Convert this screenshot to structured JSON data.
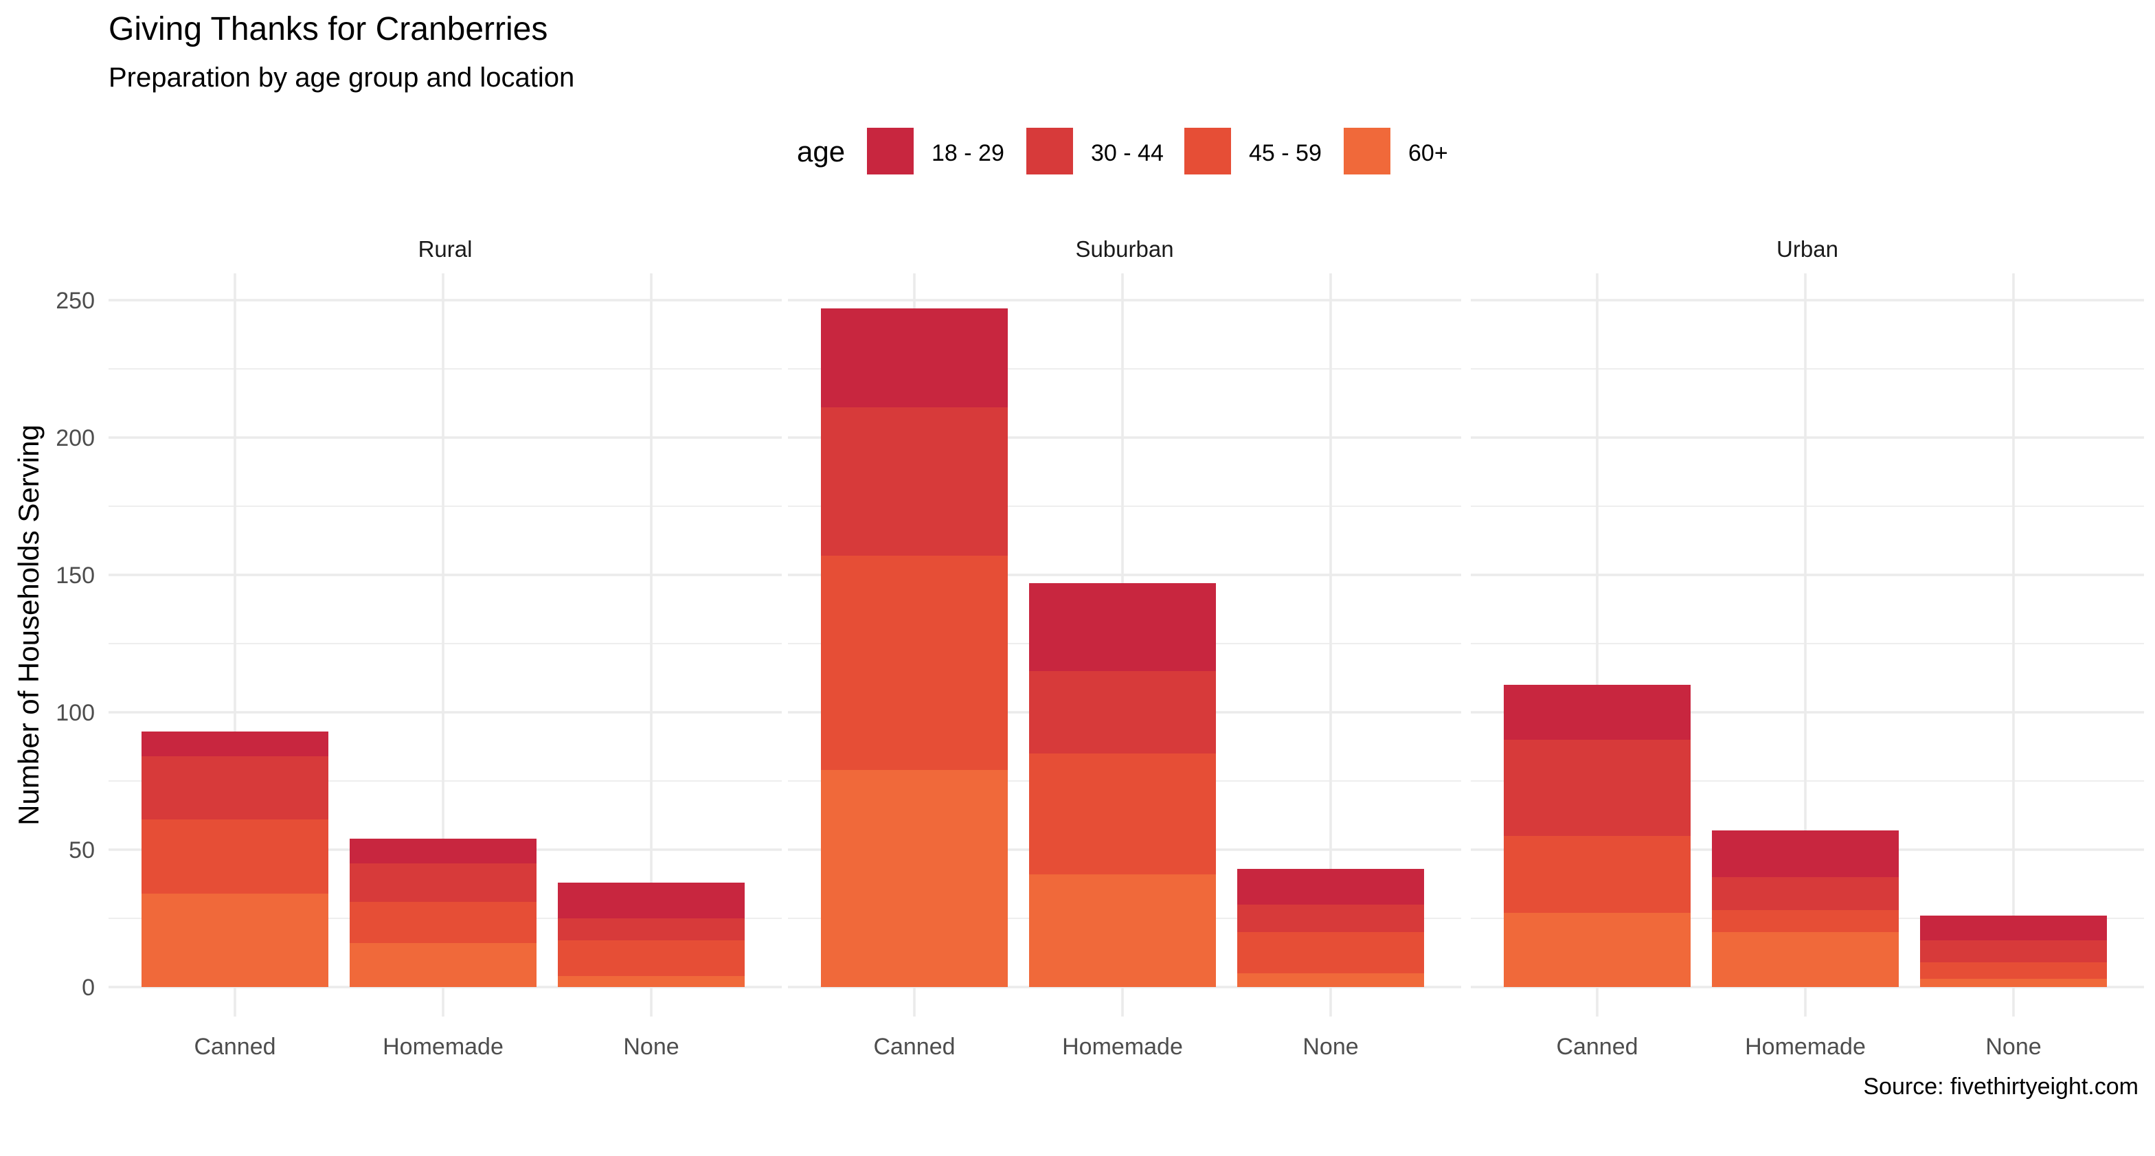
{
  "chart_data": {
    "type": "bar",
    "stacked": true,
    "faceted_by": "location",
    "title": "Giving Thanks for Cranberries",
    "subtitle": "Preparation by age group and location",
    "ylabel": "Number of Households Serving",
    "xlabel": "",
    "caption": "Source: fivethirtyeight.com",
    "legend_title": "age",
    "legend_position": "top",
    "grid": true,
    "ylim": [
      0,
      260
    ],
    "yticks": [
      0,
      50,
      100,
      150,
      200,
      250
    ],
    "categories": [
      "Canned",
      "Homemade",
      "None"
    ],
    "series": [
      {
        "name": "18 - 29",
        "color": "#C8263F"
      },
      {
        "name": "30 - 44",
        "color": "#D73A3A"
      },
      {
        "name": "45 - 59",
        "color": "#E64E36"
      },
      {
        "name": "60+",
        "color": "#F0693A"
      }
    ],
    "panels": [
      {
        "label": "Rural",
        "values": {
          "18 - 29": [
            9,
            9,
            13
          ],
          "30 - 44": [
            23,
            14,
            8
          ],
          "45 - 59": [
            27,
            15,
            13
          ],
          "60+": [
            34,
            16,
            4
          ]
        }
      },
      {
        "label": "Suburban",
        "values": {
          "18 - 29": [
            36,
            32,
            13
          ],
          "30 - 44": [
            54,
            30,
            10
          ],
          "45 - 59": [
            78,
            44,
            15
          ],
          "60+": [
            79,
            41,
            5
          ]
        }
      },
      {
        "label": "Urban",
        "values": {
          "18 - 29": [
            20,
            17,
            9
          ],
          "30 - 44": [
            35,
            12,
            8
          ],
          "45 - 59": [
            28,
            8,
            6
          ],
          "60+": [
            27,
            20,
            3
          ]
        }
      }
    ]
  }
}
